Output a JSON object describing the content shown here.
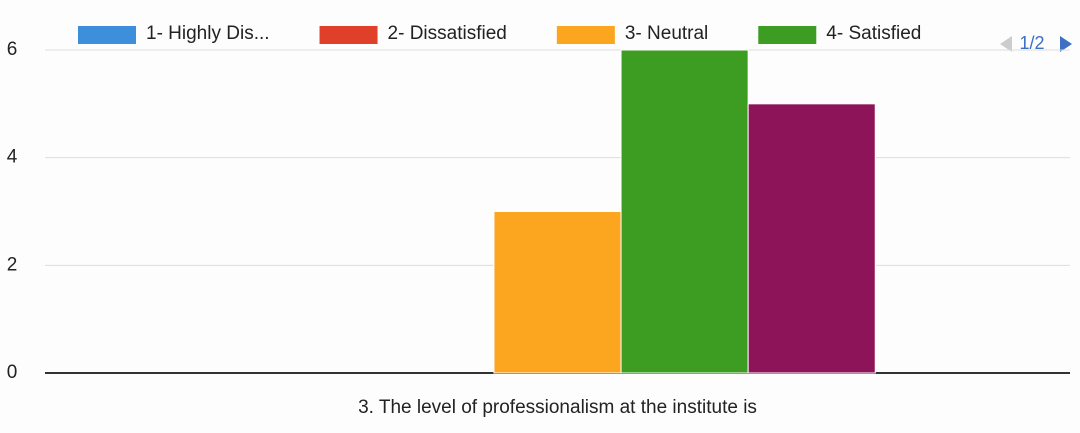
{
  "chart_data": {
    "type": "bar",
    "categories": [
      "3. The level of professionalism at the institute is"
    ],
    "series": [
      {
        "name": "1- Highly Dis...",
        "color": "#3d8fdc",
        "values": [
          0
        ]
      },
      {
        "name": "2- Dissatisfied",
        "color": "#e0402a",
        "values": [
          0
        ]
      },
      {
        "name": "3- Neutral",
        "color": "#fca51f",
        "values": [
          3
        ]
      },
      {
        "name": "4- Satisfied",
        "color": "#3c9d22",
        "values": [
          6
        ]
      },
      {
        "color": "#8d1459",
        "values": [
          5
        ]
      }
    ],
    "legend_page": "1/2",
    "ylim": [
      0,
      6
    ],
    "yticks": [
      0,
      2,
      4,
      6
    ],
    "grid": true
  }
}
